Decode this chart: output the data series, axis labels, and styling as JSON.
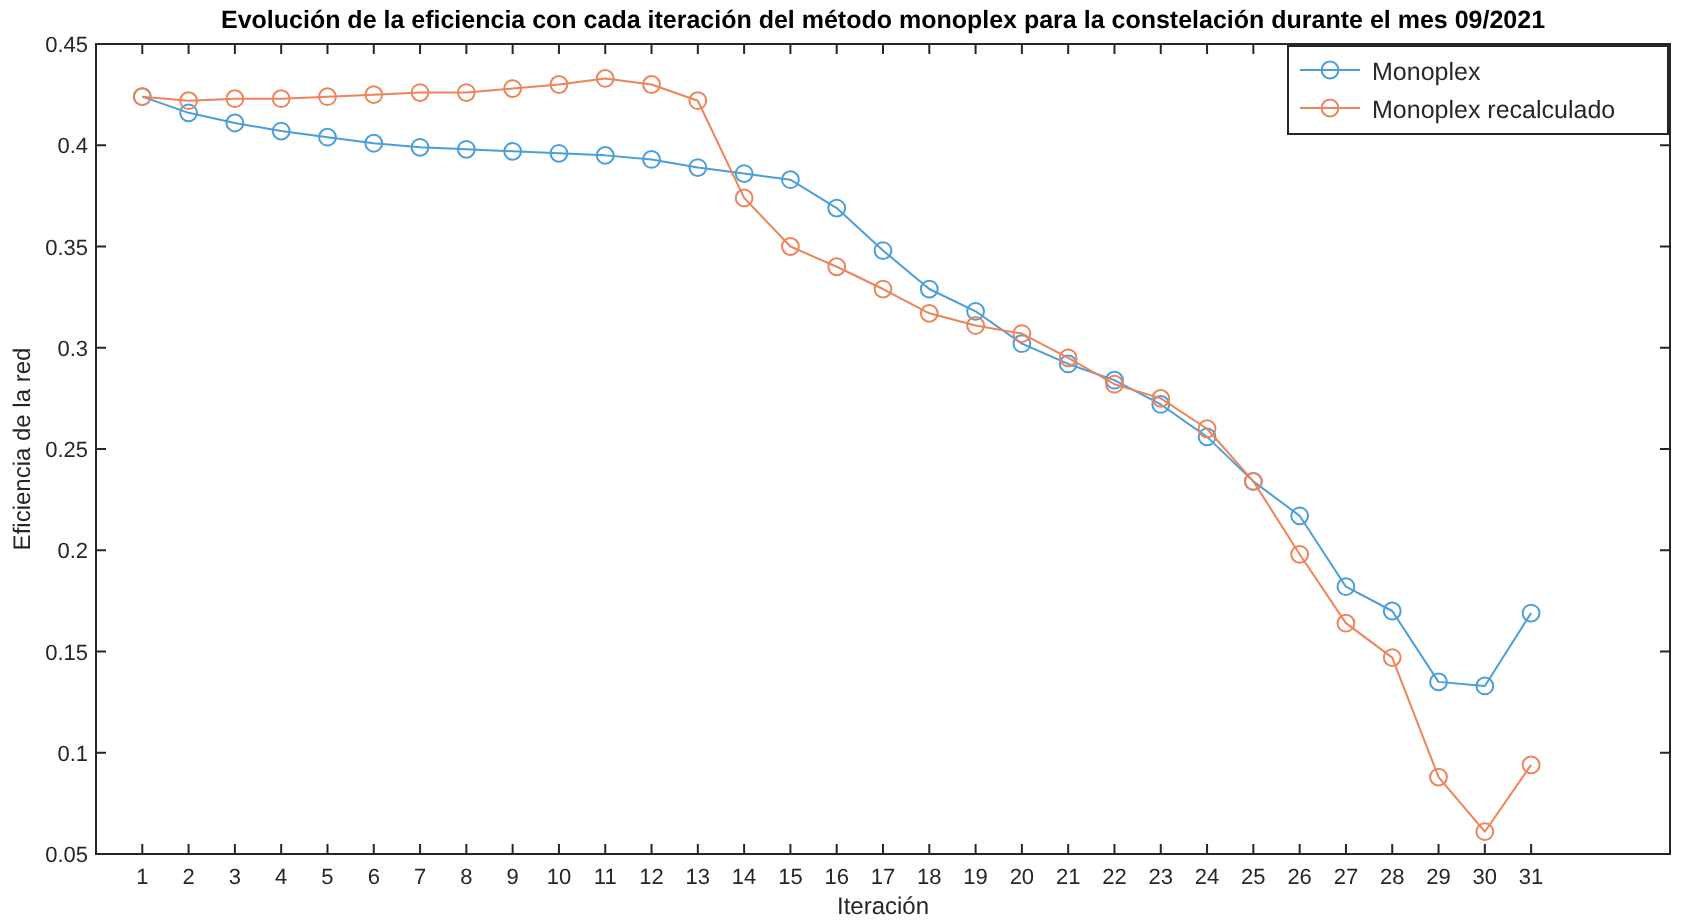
{
  "chart_data": {
    "type": "line",
    "title": "Evolución de la eficiencia con cada iteración del método monoplex para la constelación durante el mes 09/2021",
    "xlabel": "Iteración",
    "ylabel": "Eficiencia de la red",
    "x": [
      1,
      2,
      3,
      4,
      5,
      6,
      7,
      8,
      9,
      10,
      11,
      12,
      13,
      14,
      15,
      16,
      17,
      18,
      19,
      20,
      21,
      22,
      23,
      24,
      25,
      26,
      27,
      28,
      29,
      30,
      31
    ],
    "xlim": [
      0,
      34
    ],
    "xticks": [
      1,
      2,
      3,
      4,
      5,
      6,
      7,
      8,
      9,
      10,
      11,
      12,
      13,
      14,
      15,
      16,
      17,
      18,
      19,
      20,
      21,
      22,
      23,
      24,
      25,
      26,
      27,
      28,
      29,
      30,
      31
    ],
    "ylim": [
      0.05,
      0.45
    ],
    "yticks": [
      0.05,
      0.1,
      0.15,
      0.2,
      0.25,
      0.3,
      0.35,
      0.4,
      0.45
    ],
    "series": [
      {
        "name": "Monoplex",
        "color": "#4a9fdb",
        "values": [
          0.424,
          0.416,
          0.411,
          0.407,
          0.404,
          0.401,
          0.399,
          0.398,
          0.397,
          0.396,
          0.395,
          0.393,
          0.389,
          0.386,
          0.383,
          0.369,
          0.348,
          0.329,
          0.318,
          0.302,
          0.292,
          0.284,
          0.272,
          0.256,
          0.234,
          0.217,
          0.182,
          0.17,
          0.135,
          0.133,
          0.169
        ]
      },
      {
        "name": "Monoplex recalculado",
        "color": "#ee8459",
        "values": [
          0.424,
          0.422,
          0.423,
          0.423,
          0.424,
          0.425,
          0.426,
          0.426,
          0.428,
          0.43,
          0.433,
          0.43,
          0.422,
          0.374,
          0.35,
          0.34,
          0.329,
          0.317,
          0.311,
          0.307,
          0.295,
          0.282,
          0.275,
          0.26,
          0.234,
          0.198,
          0.164,
          0.147,
          0.088,
          0.061,
          0.094
        ]
      }
    ],
    "marker": "circle",
    "line_style": "solid",
    "grid": false,
    "legend": "top right"
  }
}
